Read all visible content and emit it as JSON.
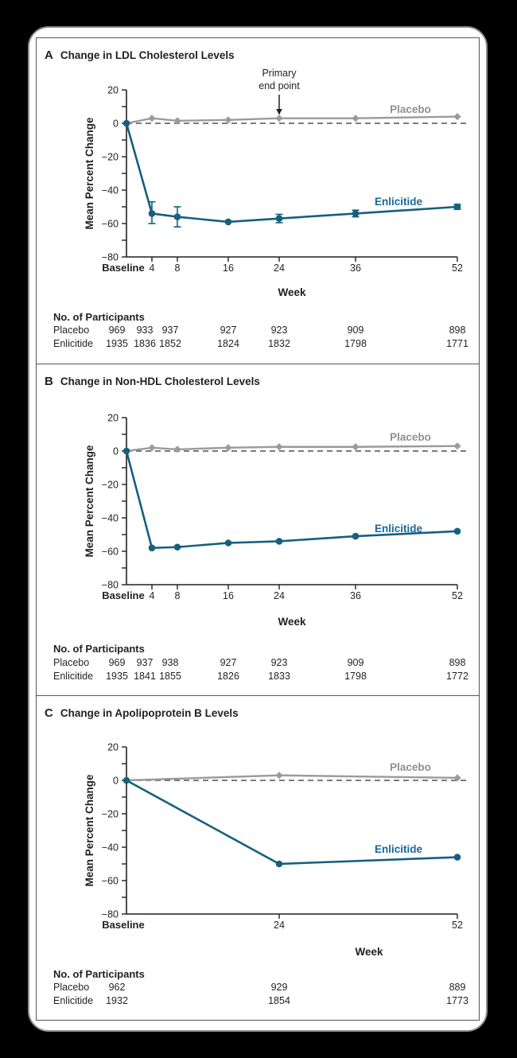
{
  "style": {
    "page_bg": "#000000",
    "card_bg": "#ffffff",
    "card_border": "#8f9093",
    "panel_border": "#55565a",
    "axis": "#231f20",
    "axis_text": "#231f20",
    "zero_dash": "#4f5052"
  },
  "chart_data": [
    {
      "type": "line",
      "panel_letter": "A",
      "title": "Change in LDL Cholesterol Levels",
      "xlabel": "Week",
      "ylabel": "Mean Percent Change",
      "ylim": [
        -80,
        20
      ],
      "y_ticks": [
        20,
        0,
        -20,
        -40,
        -60,
        -80
      ],
      "x_weeks": [
        0,
        4,
        8,
        16,
        24,
        36,
        52
      ],
      "x_tick_labels": [
        "Baseline",
        "4",
        "8",
        "16",
        "24",
        "36",
        "52"
      ],
      "grid": false,
      "zero_line_dashed": true,
      "legend_position": "inline-labels",
      "annotation": {
        "text_lines": [
          "Primary",
          "end point"
        ],
        "week": 24
      },
      "series": [
        {
          "name": "Placebo",
          "marker": "diamond",
          "color": "#9a9b9d",
          "label_color": "#8e9093",
          "values": [
            0,
            3,
            1.5,
            2,
            3,
            3,
            4
          ]
        },
        {
          "name": "Enlicitide",
          "marker": "circle",
          "color": "#15607f",
          "label_color": "#17699b",
          "values": [
            0,
            -54,
            -56,
            -59,
            -57,
            -54,
            -50
          ],
          "error_bars": [
            null,
            [
              7,
              6
            ],
            [
              6,
              6
            ],
            null,
            [
              2.5,
              2.5
            ],
            [
              2,
              2
            ],
            [
              1.5,
              1.5
            ]
          ]
        }
      ],
      "participants": {
        "header": "No. of Participants",
        "rows": [
          {
            "label": "Placebo",
            "values": [
              "969",
              "933",
              "937",
              "927",
              "923",
              "909",
              "898"
            ]
          },
          {
            "label": "Enlicitide",
            "values": [
              "1935",
              "1836",
              "1852",
              "1824",
              "1832",
              "1798",
              "1771"
            ]
          }
        ]
      }
    },
    {
      "type": "line",
      "panel_letter": "B",
      "title": "Change in Non-HDL Cholesterol Levels",
      "xlabel": "Week",
      "ylabel": "Mean Percent Change",
      "ylim": [
        -80,
        20
      ],
      "y_ticks": [
        20,
        0,
        -20,
        -40,
        -60,
        -80
      ],
      "x_weeks": [
        0,
        4,
        8,
        16,
        24,
        36,
        52
      ],
      "x_tick_labels": [
        "Baseline",
        "4",
        "8",
        "16",
        "24",
        "36",
        "52"
      ],
      "grid": false,
      "zero_line_dashed": true,
      "legend_position": "inline-labels",
      "series": [
        {
          "name": "Placebo",
          "marker": "diamond",
          "color": "#9a9b9d",
          "label_color": "#8e9093",
          "values": [
            0,
            2,
            1,
            2,
            2.5,
            2.5,
            3
          ]
        },
        {
          "name": "Enlicitide",
          "marker": "circle",
          "color": "#15607f",
          "label_color": "#17699b",
          "values": [
            0,
            -58,
            -57.5,
            -55,
            -54,
            -51,
            -48
          ]
        }
      ],
      "participants": {
        "header": "No. of Participants",
        "rows": [
          {
            "label": "Placebo",
            "values": [
              "969",
              "937",
              "938",
              "927",
              "923",
              "909",
              "898"
            ]
          },
          {
            "label": "Enlicitide",
            "values": [
              "1935",
              "1841",
              "1855",
              "1826",
              "1833",
              "1798",
              "1772"
            ]
          }
        ]
      }
    },
    {
      "type": "line",
      "panel_letter": "C",
      "title": "Change in Apolipoprotein B Levels",
      "xlabel": "Week",
      "ylabel": "Mean Percent Change",
      "ylim": [
        -80,
        20
      ],
      "y_ticks": [
        20,
        0,
        -20,
        -40,
        -60,
        -80
      ],
      "x_weeks": [
        0,
        24,
        52
      ],
      "x_tick_labels": [
        "Baseline",
        "24",
        "52"
      ],
      "grid": false,
      "zero_line_dashed": true,
      "legend_position": "inline-labels",
      "series": [
        {
          "name": "Placebo",
          "marker": "diamond",
          "color": "#9a9b9d",
          "label_color": "#8e9093",
          "values": [
            0,
            3,
            1.5
          ]
        },
        {
          "name": "Enlicitide",
          "marker": "circle",
          "color": "#15607f",
          "label_color": "#17699b",
          "values": [
            0,
            -50,
            -46
          ]
        }
      ],
      "participants": {
        "header": "No. of Participants",
        "rows": [
          {
            "label": "Placebo",
            "values": [
              "962",
              "929",
              "889"
            ]
          },
          {
            "label": "Enlicitide",
            "values": [
              "1932",
              "1854",
              "1773"
            ]
          }
        ]
      }
    }
  ]
}
